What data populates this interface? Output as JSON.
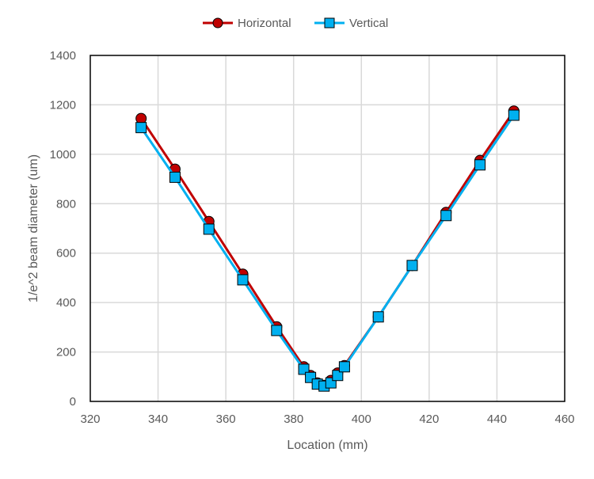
{
  "chart_data": {
    "type": "line",
    "title": "",
    "xlabel": "Location (mm)",
    "ylabel": "1/e^2 beam diameter (um)",
    "xlim": [
      320,
      460
    ],
    "ylim": [
      0,
      1400
    ],
    "xticks": [
      320,
      340,
      360,
      380,
      400,
      420,
      440,
      460
    ],
    "yticks": [
      0,
      200,
      400,
      600,
      800,
      1000,
      1200,
      1400
    ],
    "grid": true,
    "legend_position": "top-center",
    "series": [
      {
        "name": "Horizontal",
        "color": "#c00000",
        "marker": "circle",
        "x": [
          335,
          345,
          355,
          365,
          375,
          383,
          385,
          387,
          389,
          391,
          393,
          395,
          405,
          415,
          425,
          435,
          445
        ],
        "y": [
          1145,
          940,
          728,
          515,
          302,
          140,
          105,
          75,
          65,
          85,
          115,
          145,
          342,
          550,
          765,
          975,
          1175
        ]
      },
      {
        "name": "Vertical",
        "color": "#00b0f0",
        "marker": "square",
        "x": [
          335,
          345,
          355,
          365,
          375,
          383,
          385,
          387,
          389,
          391,
          393,
          395,
          405,
          415,
          425,
          435,
          445
        ],
        "y": [
          1108,
          907,
          697,
          492,
          287,
          130,
          97,
          70,
          62,
          75,
          105,
          140,
          342,
          550,
          752,
          957,
          1158
        ]
      }
    ]
  }
}
